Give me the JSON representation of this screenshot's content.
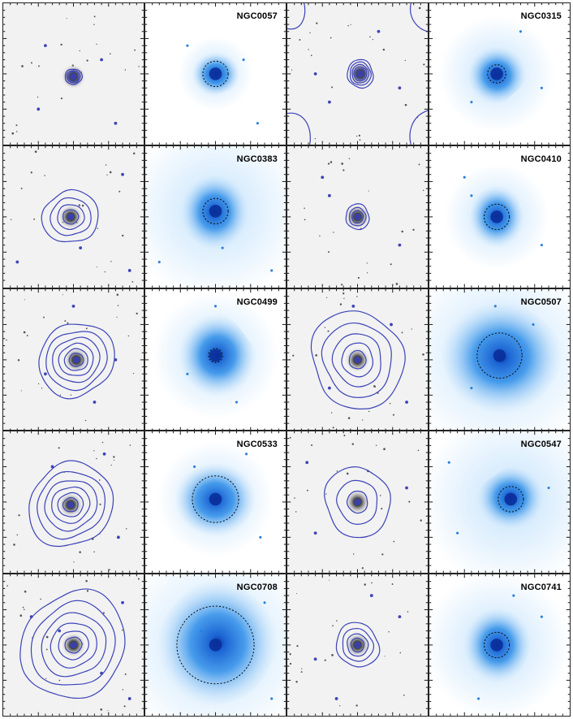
{
  "figure": {
    "colors": {
      "contour": "#3d44b8",
      "xray_core": "#0a2f9a",
      "xray_mid": "#2e8ee8",
      "xray_halo": "#bfe0fb",
      "optical_bg": "#f2f2f2",
      "frame": "#222222"
    },
    "rows": [
      {
        "galaxy": "NGC0057",
        "optical_extent": 0.12,
        "xray_extent": 0.35,
        "n_contours": 3,
        "sky_contour": false,
        "aperture": 0.18,
        "xray_halo": 0.35
      },
      {
        "galaxy": "NGC0315",
        "optical_extent": 0.2,
        "xray_extent": 0.45,
        "n_contours": 5,
        "sky_contour": true,
        "aperture": 0.13,
        "xray_halo": 0.55
      },
      {
        "galaxy": "NGC0383",
        "optical_extent": 0.4,
        "xray_extent": 0.55,
        "n_contours": 4,
        "sky_contour": false,
        "aperture": 0.18,
        "xray_halo": 0.85
      },
      {
        "galaxy": "NGC0410",
        "optical_extent": 0.18,
        "xray_extent": 0.45,
        "n_contours": 3,
        "sky_contour": false,
        "aperture": 0.18,
        "xray_halo": 0.5
      },
      {
        "galaxy": "NGC0499",
        "optical_extent": 0.55,
        "xray_extent": 0.62,
        "n_contours": 6,
        "sky_contour": false,
        "aperture": 0.1,
        "xray_halo": 0.6
      },
      {
        "galaxy": "NGC0507",
        "optical_extent": 0.7,
        "xray_extent": 0.9,
        "n_contours": 5,
        "sky_contour": false,
        "aperture": 0.32,
        "xray_halo": 0.95
      },
      {
        "galaxy": "NGC0533",
        "optical_extent": 0.62,
        "xray_extent": 0.6,
        "n_contours": 6,
        "sky_contour": false,
        "aperture": 0.33,
        "xray_halo": 0.55
      },
      {
        "galaxy": "NGC0547",
        "optical_extent": 0.5,
        "xray_extent": 0.5,
        "n_contours": 3,
        "sky_contour": false,
        "aperture": 0.18,
        "xray_halo": 0.85
      },
      {
        "galaxy": "NGC0708",
        "optical_extent": 0.78,
        "xray_extent": 0.95,
        "n_contours": 6,
        "sky_contour": false,
        "aperture": 0.55,
        "xray_halo": 0.95
      },
      {
        "galaxy": "NGC0741",
        "optical_extent": 0.32,
        "xray_extent": 0.55,
        "n_contours": 4,
        "sky_contour": false,
        "aperture": 0.18,
        "xray_halo": 0.7
      }
    ]
  }
}
